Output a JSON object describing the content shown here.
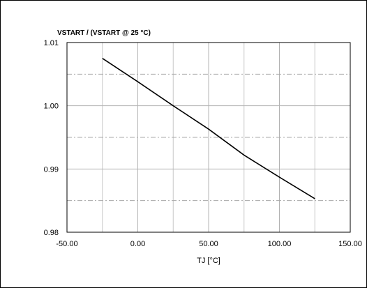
{
  "chart_data": {
    "type": "line",
    "title": "",
    "ylabel": "VSTART / (VSTART @ 25 °C)",
    "xlabel": "TJ [°C]",
    "xlim": [
      -50,
      150
    ],
    "ylim": [
      0.98,
      1.01
    ],
    "x_ticks": [
      -50,
      0,
      50,
      100,
      150
    ],
    "x_tick_labels": [
      "-50.00",
      "0.00",
      "50.00",
      "100.00",
      "150.00"
    ],
    "y_ticks": [
      0.98,
      0.99,
      1.0,
      1.01
    ],
    "y_tick_labels": [
      "0.98",
      "0.99",
      "1.00",
      "1.01"
    ],
    "x_minor_gridlines": [
      -25,
      25,
      75,
      125
    ],
    "y_minor_gridlines": [
      0.985,
      0.995,
      1.005
    ],
    "grid": true,
    "series": [
      {
        "x": [
          -25,
          0,
          25,
          50,
          75,
          100,
          125
        ],
        "y": [
          1.0075,
          1.0038,
          1.0,
          0.9963,
          0.9922,
          0.9887,
          0.9853
        ],
        "color": "#000000"
      }
    ]
  }
}
